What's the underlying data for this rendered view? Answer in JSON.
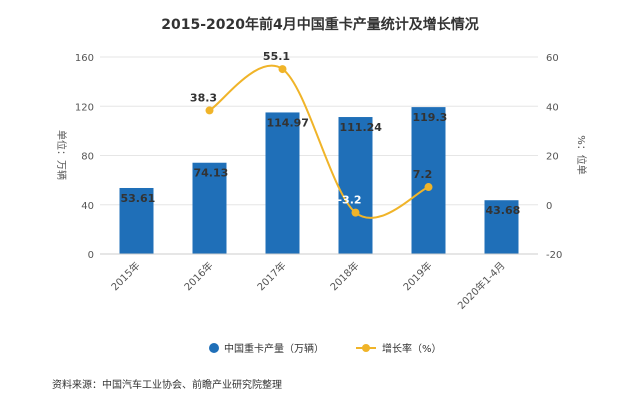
{
  "chart_data": {
    "type": "bar",
    "title": "2015-2020年前4月中国重卡产量统计及增长情况",
    "categories": [
      "2015年",
      "2016年",
      "2017年",
      "2018年",
      "2019年",
      "2020年1-4月"
    ],
    "series": [
      {
        "name": "中国重卡产量（万辆）",
        "type": "bar",
        "axis": "left",
        "color": "#1f6fb8",
        "values": [
          53.61,
          74.13,
          114.97,
          111.24,
          119.3,
          43.68
        ]
      },
      {
        "name": "增长率（%）",
        "type": "line",
        "axis": "right",
        "color": "#f0b429",
        "values": [
          null,
          38.3,
          55.1,
          -3.2,
          7.2,
          null
        ]
      }
    ],
    "ylabel": "单位：万辆",
    "y2label": "%：位单",
    "ylim": [
      0,
      160
    ],
    "y2lim": [
      -20,
      60
    ],
    "yticks": [
      0,
      40,
      80,
      120,
      160
    ],
    "y2ticks": [
      -20,
      0,
      20,
      40,
      60
    ],
    "grid": true,
    "legend_position": "bottom"
  },
  "source": "资料来源：中国汽车工业协会、前瞻产业研究院整理",
  "colors": {
    "bar": "#1f6fb8",
    "line": "#f0b429",
    "grid": "#e6e6e6"
  }
}
